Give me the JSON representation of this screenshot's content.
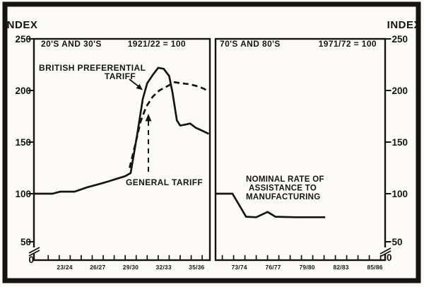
{
  "figure": {
    "axis_title_left": "INDEX",
    "axis_title_right": "INDEX",
    "y_tick_labels": [
      250,
      200,
      150,
      100,
      50,
      0
    ],
    "ink_color": "#151413",
    "paper_color": "#fcfbf8"
  },
  "chart_data": [
    {
      "type": "line",
      "panel": "left",
      "title": "20'S AND 30'S",
      "subtitle": "1921/22 = 100",
      "y_axis_side": "left",
      "ylabel": "INDEX",
      "ylim": [
        0,
        250
      ],
      "y_axis_break_below": 50,
      "grid": false,
      "x_tick_labels": [
        "23/24",
        "26/27",
        "29/30",
        "32/33",
        "35/36"
      ],
      "x_label_year_centers": [
        1923.5,
        1926.5,
        1929.5,
        1932.5,
        1935.5
      ],
      "x_tick_year_first": 1922,
      "x_tick_year_last": 1936,
      "x_range_years": [
        1920.7,
        1936.7
      ],
      "series": [
        {
          "name": "BRITISH PREFERENTIAL TARIFF",
          "line_style": "solid",
          "points": [
            [
              1920.7,
              100
            ],
            [
              1922.4,
              100
            ],
            [
              1923.1,
              102
            ],
            [
              1924.4,
              102
            ],
            [
              1925.5,
              106
            ],
            [
              1926.5,
              109
            ],
            [
              1927.5,
              112
            ],
            [
              1928.4,
              115
            ],
            [
              1929.0,
              117
            ],
            [
              1929.5,
              120
            ],
            [
              1930.1,
              158
            ],
            [
              1930.6,
              192
            ],
            [
              1931.0,
              207
            ],
            [
              1931.5,
              215
            ],
            [
              1932.0,
              222
            ],
            [
              1932.5,
              221
            ],
            [
              1933.0,
              214
            ],
            [
              1933.3,
              198
            ],
            [
              1933.7,
              171
            ],
            [
              1934.0,
              166
            ],
            [
              1934.5,
              167
            ],
            [
              1934.9,
              168
            ],
            [
              1935.4,
              164
            ],
            [
              1936.0,
              161
            ],
            [
              1936.6,
              158
            ]
          ]
        },
        {
          "name": "GENERAL TARIFF",
          "line_style": "dashed",
          "points": [
            [
              1929.4,
              125
            ],
            [
              1929.9,
              147
            ],
            [
              1930.4,
              170
            ],
            [
              1930.9,
              184
            ],
            [
              1931.5,
              194
            ],
            [
              1932.1,
              200
            ],
            [
              1932.8,
              204
            ],
            [
              1933.5,
              208
            ],
            [
              1934.1,
              207
            ],
            [
              1934.9,
              206
            ],
            [
              1935.6,
              204
            ],
            [
              1936.1,
              202
            ],
            [
              1936.6,
              199
            ]
          ]
        }
      ]
    },
    {
      "type": "line",
      "panel": "right",
      "title": "70'S AND 80'S",
      "subtitle": "1971/72 = 100",
      "y_axis_side": "right",
      "ylabel": "INDEX",
      "ylim": [
        0,
        250
      ],
      "y_axis_break_below": 50,
      "grid": false,
      "x_tick_labels": [
        "73/74",
        "76/77",
        "79/80",
        "82/83",
        "85/86"
      ],
      "x_label_year_centers": [
        1973.5,
        1976.5,
        1979.5,
        1982.5,
        1985.5
      ],
      "x_tick_year_first": 1972,
      "x_tick_year_last": 1986,
      "x_range_years": [
        1971.4,
        1986.4
      ],
      "series": [
        {
          "name": "NOMINAL RATE OF ASSISTANCE TO MANUFACTURING",
          "line_style": "solid",
          "points": [
            [
              1971.45,
              100
            ],
            [
              1972.9,
              100
            ],
            [
              1974.1,
              76
            ],
            [
              1975.0,
              75.5
            ],
            [
              1976.0,
              81
            ],
            [
              1976.7,
              76
            ],
            [
              1978.5,
              75.5
            ],
            [
              1981.1,
              75.5
            ]
          ]
        }
      ]
    }
  ],
  "annotations": {
    "bpt_line1": "BRITISH PREFERENTIAL",
    "bpt_line2": "TARIFF",
    "general_tariff": "GENERAL TARIFF",
    "nra_line1": "NOMINAL RATE OF",
    "nra_line2": "ASSISTANCE TO",
    "nra_line3": "MANUFACTURING"
  }
}
